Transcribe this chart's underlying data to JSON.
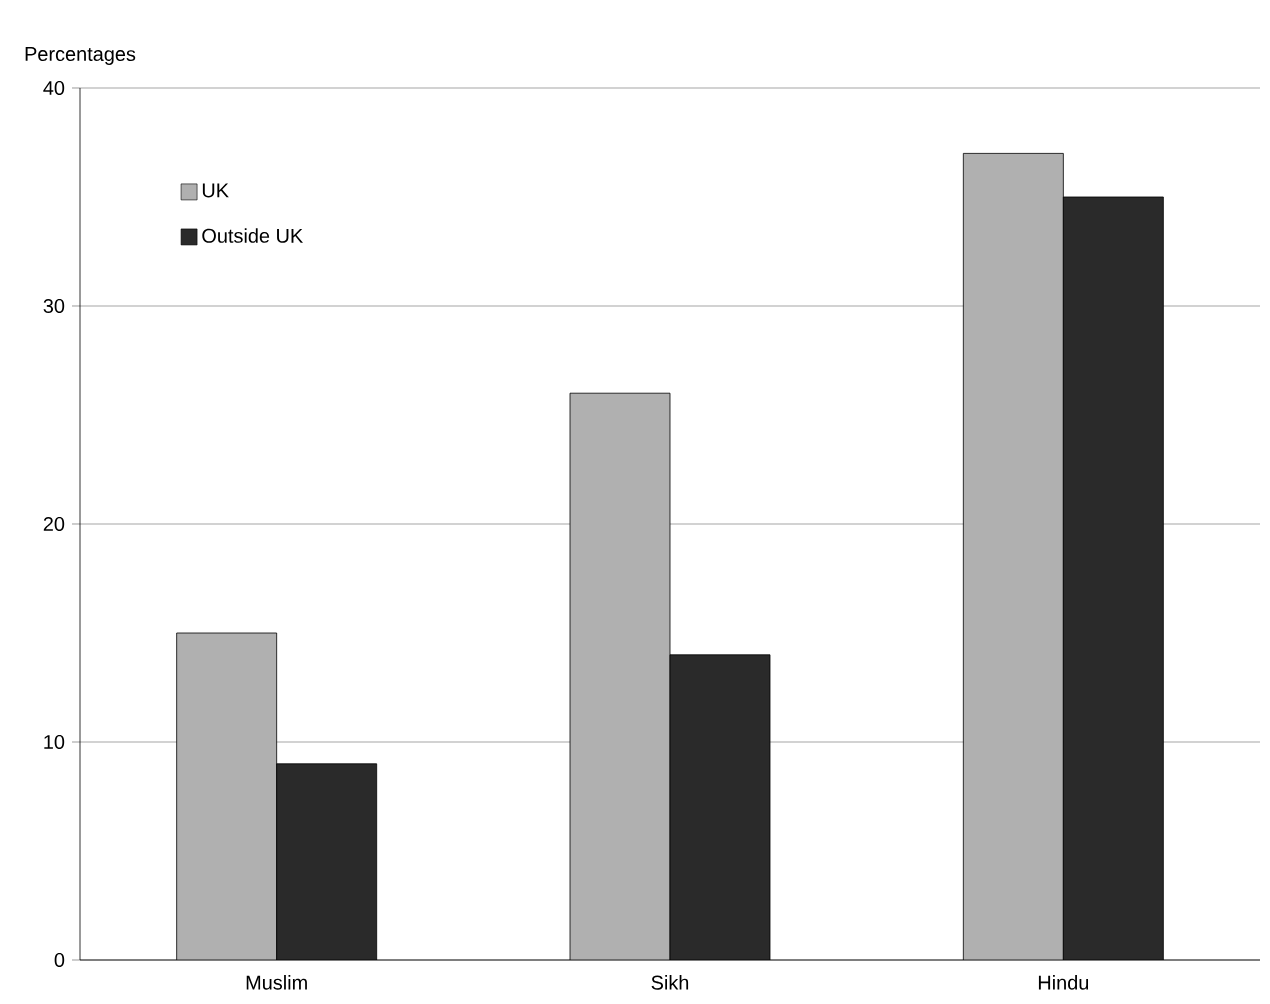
{
  "chart_data": {
    "type": "bar",
    "ylabel": "Percentages",
    "categories": [
      "Muslim",
      "Sikh",
      "Hindu"
    ],
    "series": [
      {
        "name": "UK",
        "color": "#b0b0b0",
        "values": [
          15,
          26,
          37
        ]
      },
      {
        "name": "Outside UK",
        "color": "#2a2a2a",
        "values": [
          9,
          14,
          35
        ]
      }
    ],
    "ylim": [
      0,
      40
    ],
    "yticks": [
      0,
      10,
      20,
      30,
      40
    ],
    "grid": "y",
    "legend": "top left"
  }
}
